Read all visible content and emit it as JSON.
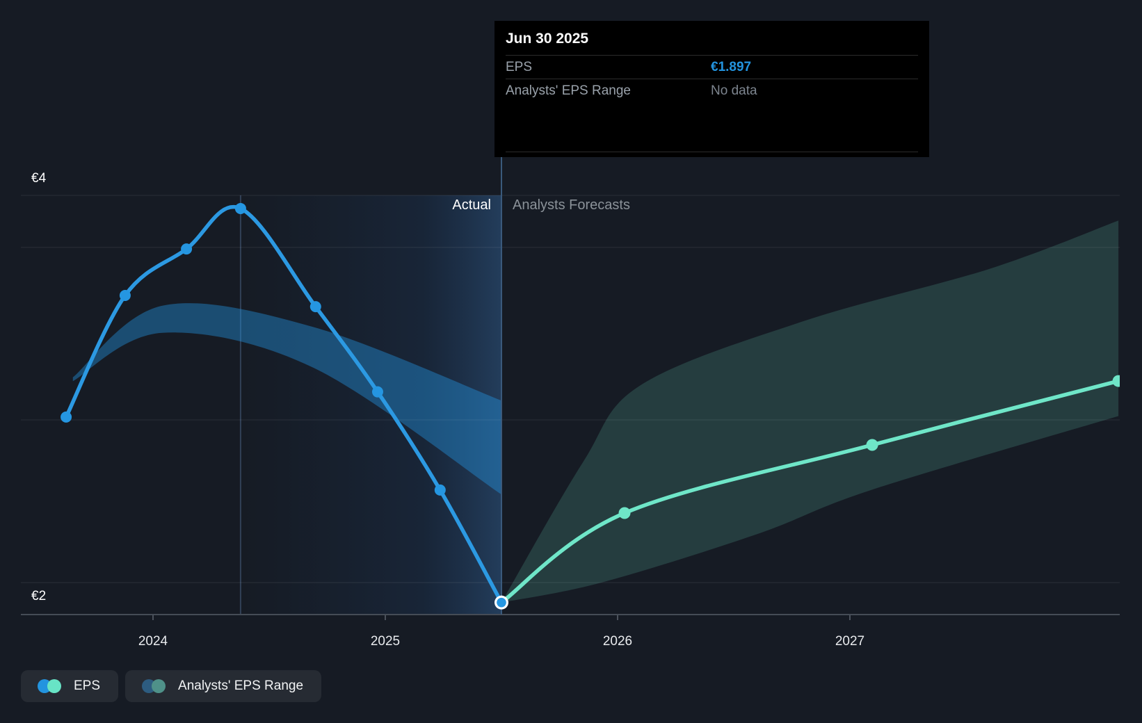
{
  "tooltip": {
    "date": "Jun 30 2025",
    "rows": [
      {
        "label": "EPS",
        "value": "€1.897"
      },
      {
        "label": "Analysts' EPS Range",
        "value": "No data"
      }
    ]
  },
  "annotations": {
    "actual_label": "Actual",
    "forecast_label": "Analysts Forecasts"
  },
  "legend": {
    "items": [
      {
        "label": "EPS",
        "dot_colors": [
          "#2394df",
          "#68e4c6"
        ]
      },
      {
        "label": "Analysts' EPS Range",
        "dot_colors": [
          "#2d5c80",
          "#4f9189"
        ]
      }
    ]
  },
  "colors": {
    "background": "#161b24",
    "grid": "rgba(255,255,255,0.09)",
    "axis_line": "#454c56",
    "tick": "#4c525c",
    "eps_actual_line": "#2c99e2",
    "eps_actual_dot": "#2596e1",
    "eps_forecast_line": "#6fe6c8",
    "past_range_fill": "rgba(35,148,223,0.42)",
    "forecast_range_fill": "rgba(111,230,200,0.17)",
    "divider": "#3a5a7c",
    "crosshair": "rgba(130,175,235,0.25)",
    "highlight_fade_to": "rgba(70,150,235,0.28)",
    "accent_blue": "#2394df",
    "accent_teal": "#64e0c3"
  },
  "chart_data": {
    "type": "line",
    "title": "EPS actual vs analysts forecast",
    "currency": "EUR",
    "x_axis": {
      "ticks": [
        {
          "t": 2024,
          "label": "2024"
        },
        {
          "t": 2025,
          "label": "2025"
        },
        {
          "t": 2026,
          "label": "2026"
        },
        {
          "t": 2027,
          "label": "2027"
        }
      ]
    },
    "y_axis": {
      "labels": [
        {
          "eps": 4,
          "label": "€4"
        },
        {
          "eps": 2,
          "label": "€2"
        }
      ],
      "gridlines_eps": [
        4,
        3.731,
        2.84,
        2
      ],
      "range": [
        1.75,
        4.2
      ]
    },
    "divider_t": 2025.5,
    "crosshair_t": 2024.377,
    "series": [
      {
        "name": "EPS",
        "kind": "actual",
        "points": [
          [
            2023.626,
            2.855
          ],
          [
            2023.88,
            3.483
          ],
          [
            2024.144,
            3.723
          ],
          [
            2024.377,
            3.932
          ],
          [
            2024.7,
            3.425
          ],
          [
            2024.967,
            2.985
          ],
          [
            2025.236,
            2.478
          ],
          [
            2025.5,
            1.897
          ]
        ]
      },
      {
        "name": "EPS forecast",
        "kind": "forecast",
        "points": [
          [
            2025.5,
            1.897
          ],
          [
            2026.03,
            2.359
          ],
          [
            2027.096,
            2.711
          ],
          [
            2028.156,
            3.041
          ]
        ]
      }
    ],
    "bands": [
      {
        "name": "Analysts' EPS Range (past)",
        "kind": "past",
        "top": [
          [
            2023.655,
            3.06
          ],
          [
            2024.04,
            3.43
          ],
          [
            2024.69,
            3.32
          ],
          [
            2025.5,
            2.94
          ]
        ],
        "bottom": [
          [
            2023.655,
            3.04
          ],
          [
            2024.04,
            3.29
          ],
          [
            2024.69,
            3.11
          ],
          [
            2025.5,
            2.455
          ]
        ]
      },
      {
        "name": "Analysts' EPS Range (forecast)",
        "kind": "forecast",
        "top": [
          [
            2025.5,
            1.897
          ],
          [
            2025.85,
            2.62
          ],
          [
            2026.1,
            3.02
          ],
          [
            2026.8,
            3.35
          ],
          [
            2027.6,
            3.62
          ],
          [
            2028.156,
            3.87
          ]
        ],
        "bottom": [
          [
            2025.5,
            1.897
          ],
          [
            2025.93,
            2.0
          ],
          [
            2026.6,
            2.25
          ],
          [
            2027.096,
            2.48
          ],
          [
            2028.156,
            2.86
          ]
        ]
      }
    ]
  }
}
